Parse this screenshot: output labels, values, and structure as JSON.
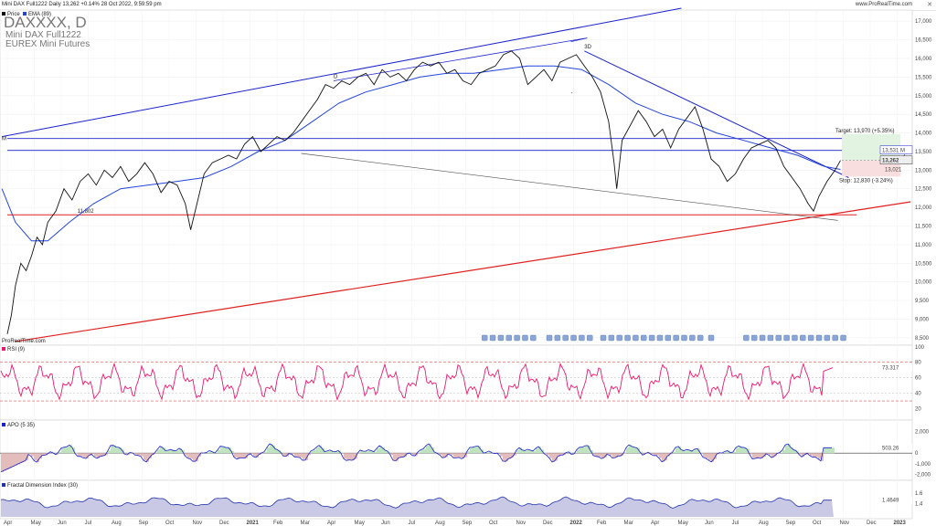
{
  "header": {
    "ticker_line": "Mini DAX Full1222 Daily 13,262 +0.14% 28 Oct 2022, 9:59:59 pm",
    "site": "www.ProRealTime.com",
    "watermark_title": "DAXXXX, D",
    "watermark_sub1": "Mini DAX Full1222",
    "watermark_sub2": "EUREX Mini Futures",
    "legend_price": "Price",
    "legend_ema": "EMA (89)",
    "copyright": "ProRealTime.com"
  },
  "colors": {
    "price": "#111111",
    "ema": "#2244dd",
    "blue_line": "#1a22cc",
    "red_line": "#e02020",
    "gray_line": "#555555",
    "rsi": "#e8186e",
    "apo_line": "#1a22cc",
    "apo_pos": "#bfe3bf",
    "apo_neg": "#e3bcbc",
    "fdi": "#2233aa",
    "fdi_fill": "#c9c9e6"
  },
  "panes": {
    "rsi": {
      "label": "RSI (9)",
      "value": "73.317",
      "ticks": [
        "100",
        "80",
        "60",
        "40",
        "20"
      ]
    },
    "apo": {
      "label": "APO (5 35)",
      "value": "503.26",
      "ticks": [
        "2,000",
        "0",
        "-1,000",
        "-2,000"
      ]
    },
    "fdi": {
      "label": "Fractal Dimension Index (30)",
      "value": "1.4649",
      "ticks": [
        "1.6",
        "1.4"
      ]
    }
  },
  "price_labels": {
    "last": "13,262",
    "level_m": "13,531 M",
    "ema_val": "13,021",
    "target": "Target: 13,970 (+5.35%)",
    "stop": "Stop: 12,830 (-3.24%)",
    "buy": "Buy",
    "gain": "Gain",
    "level_11802": "11,802",
    "m_tag": "M",
    "d_tag": "D",
    "d_tag2": "3D",
    "dash": "-"
  },
  "chart_data": {
    "type": "line",
    "title": "DAXXXX, D",
    "y_ticks": [
      17000,
      16500,
      16000,
      15500,
      15000,
      14500,
      14000,
      13500,
      13000,
      12500,
      12000,
      11500,
      11000,
      10500,
      10000,
      9500,
      9000,
      8500
    ],
    "y_tick_labels": [
      "17,000",
      "16,500",
      "16,000",
      "15,500",
      "15,000",
      "14,500",
      "14,000",
      "13,500",
      "13,000",
      "12,500",
      "12,000",
      "11,500",
      "11,000",
      "10,500",
      "10,000",
      "9,500",
      "9,000",
      "8,500"
    ],
    "ylim": [
      8300,
      17300
    ],
    "x_labels": [
      {
        "label": "Apr",
        "m": 0
      },
      {
        "label": "May",
        "m": 1
      },
      {
        "label": "Jun",
        "m": 2
      },
      {
        "label": "Jul",
        "m": 3
      },
      {
        "label": "Aug",
        "m": 4
      },
      {
        "label": "Sep",
        "m": 5
      },
      {
        "label": "Oct",
        "m": 6
      },
      {
        "label": "Nov",
        "m": 7
      },
      {
        "label": "Dec",
        "m": 8
      },
      {
        "label": "2021",
        "m": 9
      },
      {
        "label": "Feb",
        "m": 10
      },
      {
        "label": "Mar",
        "m": 11
      },
      {
        "label": "Apr",
        "m": 12
      },
      {
        "label": "May",
        "m": 13
      },
      {
        "label": "Jun",
        "m": 14
      },
      {
        "label": "Jul",
        "m": 15
      },
      {
        "label": "Aug",
        "m": 16
      },
      {
        "label": "Sep",
        "m": 17
      },
      {
        "label": "Oct",
        "m": 18
      },
      {
        "label": "Nov",
        "m": 19
      },
      {
        "label": "Dec",
        "m": 20
      },
      {
        "label": "2022",
        "m": 21
      },
      {
        "label": "Feb",
        "m": 22
      },
      {
        "label": "Mar",
        "m": 23
      },
      {
        "label": "Apr",
        "m": 24
      },
      {
        "label": "May",
        "m": 25
      },
      {
        "label": "Jun",
        "m": 26
      },
      {
        "label": "Jul",
        "m": 27
      },
      {
        "label": "Aug",
        "m": 28
      },
      {
        "label": "Sep",
        "m": 29
      },
      {
        "label": "Oct",
        "m": 30
      },
      {
        "label": "Nov",
        "m": 31
      },
      {
        "label": "Dec",
        "m": 32
      },
      {
        "label": "2023",
        "m": 33
      }
    ],
    "series": [
      {
        "key": "price",
        "name": "Price",
        "points": [
          [
            0,
            8600
          ],
          [
            0.15,
            9100
          ],
          [
            0.3,
            9900
          ],
          [
            0.5,
            10500
          ],
          [
            0.7,
            10300
          ],
          [
            0.9,
            10700
          ],
          [
            1.1,
            11200
          ],
          [
            1.3,
            11000
          ],
          [
            1.5,
            11600
          ],
          [
            1.8,
            11900
          ],
          [
            2.1,
            12500
          ],
          [
            2.4,
            12200
          ],
          [
            2.7,
            12700
          ],
          [
            3.0,
            12900
          ],
          [
            3.3,
            12600
          ],
          [
            3.6,
            13000
          ],
          [
            3.9,
            12800
          ],
          [
            4.2,
            13100
          ],
          [
            4.5,
            12700
          ],
          [
            4.8,
            12900
          ],
          [
            5.1,
            13200
          ],
          [
            5.4,
            12900
          ],
          [
            5.7,
            12400
          ],
          [
            6.0,
            12700
          ],
          [
            6.3,
            12600
          ],
          [
            6.6,
            12100
          ],
          [
            6.8,
            11400
          ],
          [
            7.0,
            12000
          ],
          [
            7.3,
            12900
          ],
          [
            7.6,
            13200
          ],
          [
            7.9,
            13300
          ],
          [
            8.2,
            13400
          ],
          [
            8.5,
            13300
          ],
          [
            8.8,
            13700
          ],
          [
            9.1,
            13900
          ],
          [
            9.4,
            13500
          ],
          [
            9.7,
            13700
          ],
          [
            10.0,
            13900
          ],
          [
            10.3,
            13800
          ],
          [
            10.6,
            14000
          ],
          [
            10.9,
            14300
          ],
          [
            11.2,
            14600
          ],
          [
            11.5,
            14900
          ],
          [
            11.8,
            15300
          ],
          [
            12.1,
            15200
          ],
          [
            12.4,
            15400
          ],
          [
            12.7,
            15300
          ],
          [
            13.0,
            15500
          ],
          [
            13.3,
            15600
          ],
          [
            13.6,
            15300
          ],
          [
            13.9,
            15700
          ],
          [
            14.2,
            15500
          ],
          [
            14.5,
            15600
          ],
          [
            14.8,
            15400
          ],
          [
            15.1,
            15700
          ],
          [
            15.4,
            15900
          ],
          [
            15.7,
            15800
          ],
          [
            16.0,
            15900
          ],
          [
            16.3,
            15600
          ],
          [
            16.6,
            15700
          ],
          [
            16.9,
            15400
          ],
          [
            17.2,
            15300
          ],
          [
            17.5,
            15600
          ],
          [
            17.8,
            15700
          ],
          [
            18.1,
            15800
          ],
          [
            18.4,
            16100
          ],
          [
            18.7,
            16200
          ],
          [
            19.0,
            16000
          ],
          [
            19.3,
            15300
          ],
          [
            19.6,
            15500
          ],
          [
            19.9,
            15700
          ],
          [
            20.2,
            15400
          ],
          [
            20.5,
            15900
          ],
          [
            20.8,
            16000
          ],
          [
            21.1,
            16100
          ],
          [
            21.4,
            15800
          ],
          [
            21.7,
            15500
          ],
          [
            22.0,
            15100
          ],
          [
            22.3,
            14300
          ],
          [
            22.5,
            13200
          ],
          [
            22.6,
            12500
          ],
          [
            22.8,
            13800
          ],
          [
            23.1,
            14200
          ],
          [
            23.4,
            14600
          ],
          [
            23.7,
            14300
          ],
          [
            24.0,
            13900
          ],
          [
            24.3,
            14100
          ],
          [
            24.6,
            13600
          ],
          [
            24.9,
            14100
          ],
          [
            25.2,
            14400
          ],
          [
            25.5,
            14700
          ],
          [
            25.8,
            14100
          ],
          [
            26.1,
            13300
          ],
          [
            26.4,
            13100
          ],
          [
            26.7,
            12700
          ],
          [
            27.0,
            12900
          ],
          [
            27.3,
            13300
          ],
          [
            27.6,
            13600
          ],
          [
            27.9,
            13700
          ],
          [
            28.2,
            13800
          ],
          [
            28.5,
            13600
          ],
          [
            28.8,
            13100
          ],
          [
            29.1,
            12800
          ],
          [
            29.4,
            12500
          ],
          [
            29.7,
            12100
          ],
          [
            29.9,
            11900
          ],
          [
            30.1,
            12300
          ],
          [
            30.4,
            12700
          ],
          [
            30.7,
            13000
          ],
          [
            30.9,
            13262
          ]
        ]
      },
      {
        "key": "ema",
        "name": "EMA (89)",
        "points": [
          [
            -0.2,
            12500
          ],
          [
            0.3,
            11600
          ],
          [
            0.9,
            11100
          ],
          [
            1.5,
            11100
          ],
          [
            2.3,
            11600
          ],
          [
            3.2,
            12100
          ],
          [
            4.2,
            12500
          ],
          [
            5.2,
            12600
          ],
          [
            6.3,
            12700
          ],
          [
            7.3,
            12800
          ],
          [
            8.3,
            13100
          ],
          [
            9.3,
            13500
          ],
          [
            10.3,
            13800
          ],
          [
            11.3,
            14300
          ],
          [
            12.3,
            14800
          ],
          [
            13.3,
            15100
          ],
          [
            14.3,
            15300
          ],
          [
            15.3,
            15500
          ],
          [
            16.3,
            15600
          ],
          [
            17.3,
            15600
          ],
          [
            18.3,
            15700
          ],
          [
            19.3,
            15800
          ],
          [
            20.3,
            15800
          ],
          [
            21.3,
            15700
          ],
          [
            22.3,
            15300
          ],
          [
            23.3,
            14800
          ],
          [
            24.3,
            14500
          ],
          [
            25.3,
            14300
          ],
          [
            26.3,
            14000
          ],
          [
            27.3,
            13800
          ],
          [
            28.3,
            13600
          ],
          [
            29.3,
            13400
          ],
          [
            30.3,
            13100
          ],
          [
            30.9,
            13021
          ]
        ]
      }
    ],
    "annotations": {
      "level_13531": 13531,
      "level_13850": 13850,
      "level_11802": 11802,
      "target": 13970,
      "stop": 12830,
      "last": 13262
    }
  }
}
